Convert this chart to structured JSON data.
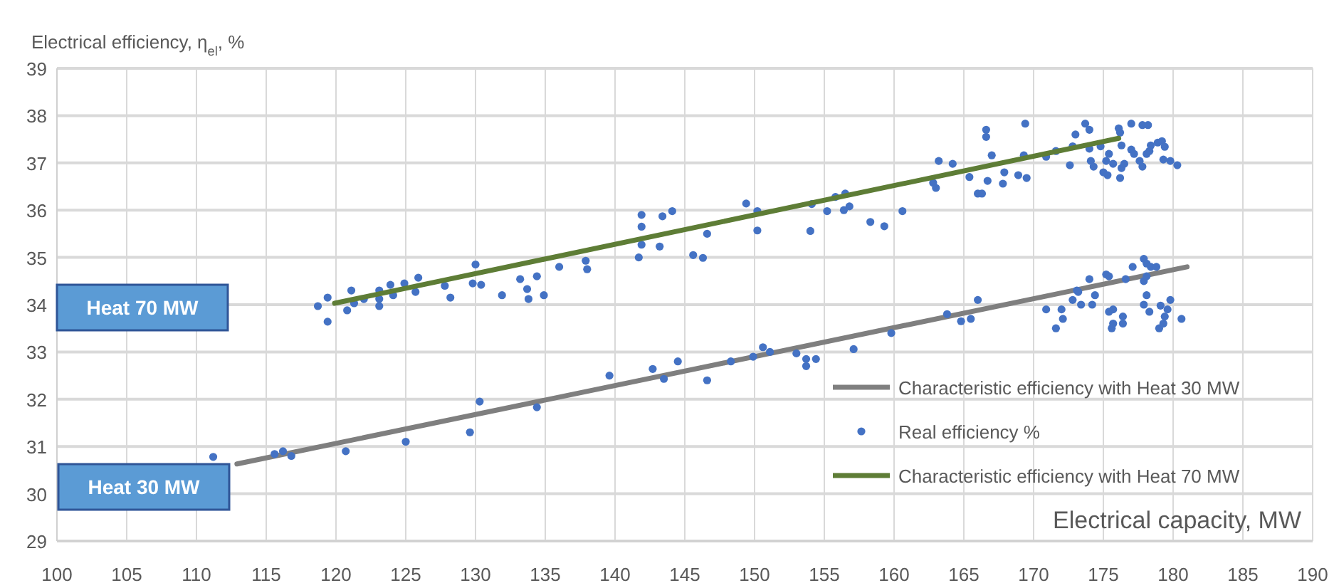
{
  "chart_data": {
    "type": "scatter",
    "xlabel": "Electrical capacity, MW",
    "ylabel": "Electrical efficiency, η$_{el}$, %",
    "xlim": [
      100,
      190
    ],
    "xticks": [
      100,
      105,
      110,
      115,
      120,
      125,
      130,
      135,
      140,
      145,
      150,
      155,
      160,
      165,
      170,
      175,
      180,
      185,
      190
    ],
    "ylim": [
      29,
      39
    ],
    "yticks": [
      29,
      30,
      31,
      32,
      33,
      34,
      35,
      36,
      37,
      38,
      39
    ],
    "grid": true,
    "legend": "bottom right",
    "annotations": [
      "Heat 70 MW",
      "Heat 30 MW"
    ],
    "series": [
      {
        "name": "Characteristic efficiency with Heat 30 MW",
        "type": "line",
        "color": "#7f7f7f",
        "x": [
          112.9,
          181
        ],
        "values": [
          30.63,
          34.8
        ]
      },
      {
        "name": "Real efficiency %",
        "marker": "circle",
        "color": "#4472c4",
        "x": [
          111.2,
          115.6,
          116.2,
          116.8,
          120.7,
          125,
          129.6,
          130.3,
          134.4,
          139.6,
          142.7,
          143.5,
          144.5,
          146.6,
          148.3,
          149.9,
          150.6,
          151.1,
          153,
          153.7,
          153.7,
          154.4,
          157.1,
          159.8,
          163.8,
          164.8,
          165.5,
          166,
          170.9,
          171.6,
          172,
          172.1,
          172.8,
          173.2,
          173.4,
          174.2,
          174.4,
          175.4,
          175.6,
          175.7,
          175.7,
          176.4,
          176.4,
          177.9,
          178.1,
          178.3,
          179.1,
          179,
          179.3,
          179.4,
          179.6,
          179.8,
          180.6,
          174,
          173.1,
          175.2,
          175.4,
          176.6,
          177.1,
          177.9,
          178.1,
          178.4,
          178.8,
          177.9,
          178.1,
          118.7,
          119.4,
          119.4,
          120.8,
          121.1,
          121.3,
          122,
          123.1,
          123.1,
          123.1,
          124.1,
          125.7,
          127.8,
          128.2,
          131.9,
          133.7,
          133.8,
          134.9,
          123.9,
          124.9,
          125.9,
          129.8,
          130,
          130.4,
          133.2,
          134.4,
          136,
          137.9,
          138,
          141.7,
          141.9,
          141.9,
          141.9,
          143.2,
          143.4,
          144.1,
          145.6,
          146.3,
          146.6,
          149.4,
          150.2,
          150.2,
          154,
          154.1,
          155.2,
          155.8,
          156.4,
          156.5,
          156.8,
          158.3,
          159.3,
          160.6,
          162.8,
          163,
          163.2,
          164.2,
          165.4,
          166,
          166.3,
          166.6,
          166.6,
          166.7,
          167,
          167.8,
          167.9,
          168.9,
          169.3,
          169.4,
          169.5,
          170.9,
          171.6,
          172.6,
          172.8,
          173,
          173.7,
          174,
          174,
          174.1,
          174.3,
          174.8,
          175,
          175.2,
          175.3,
          175.4,
          175.7,
          176.1,
          176.2,
          176.2,
          176.3,
          176.3,
          176.5,
          177,
          177,
          177.2,
          177.6,
          177.8,
          178.2,
          178.3,
          178.4,
          177.8,
          178.9,
          179.2,
          179.3,
          179.4,
          179.8,
          180.3,
          178.1
        ],
        "values": [
          30.78,
          30.84,
          30.9,
          30.8,
          30.9,
          31.1,
          31.3,
          31.95,
          31.83,
          32.5,
          32.64,
          32.43,
          32.8,
          32.4,
          32.8,
          32.9,
          33.1,
          33,
          32.97,
          32.85,
          32.7,
          32.85,
          33.06,
          33.4,
          33.8,
          33.65,
          33.7,
          34.1,
          33.9,
          33.5,
          33.9,
          33.7,
          34.1,
          34.27,
          34,
          34,
          34.2,
          33.85,
          33.5,
          33.6,
          33.9,
          33.75,
          33.6,
          34,
          34.2,
          33.85,
          33.98,
          33.5,
          33.6,
          33.75,
          33.9,
          34.1,
          33.7,
          34.54,
          34.3,
          34.64,
          34.6,
          34.54,
          34.8,
          34.97,
          34.87,
          34.8,
          34.8,
          34.5,
          34.6,
          33.97,
          34.15,
          33.64,
          33.88,
          34.3,
          34.03,
          34.12,
          34.3,
          34.12,
          33.97,
          34.2,
          34.27,
          34.4,
          34.15,
          34.2,
          34.33,
          34.12,
          34.2,
          34.42,
          34.45,
          34.57,
          34.45,
          34.85,
          34.42,
          34.54,
          34.6,
          34.8,
          34.93,
          34.75,
          35,
          35.27,
          35.65,
          35.9,
          35.23,
          35.87,
          35.98,
          35.05,
          34.99,
          35.5,
          36.14,
          35.98,
          35.57,
          35.56,
          36.13,
          35.98,
          36.28,
          36,
          36.35,
          36.08,
          35.75,
          35.66,
          35.98,
          36.58,
          36.47,
          37.04,
          36.98,
          36.7,
          36.35,
          36.35,
          37.7,
          37.55,
          36.62,
          37.16,
          36.56,
          36.8,
          36.74,
          37.16,
          37.83,
          36.68,
          37.13,
          37.25,
          36.95,
          37.35,
          37.6,
          37.83,
          37.7,
          37.3,
          37.04,
          36.92,
          37.35,
          36.8,
          37.04,
          36.74,
          37.19,
          36.98,
          37.73,
          37.64,
          36.68,
          36.89,
          37.37,
          36.98,
          37.83,
          37.28,
          37.19,
          37.04,
          37.8,
          37.8,
          37.25,
          37.37,
          36.92,
          37.43,
          37.46,
          37.07,
          37.34,
          37.04,
          36.95,
          37.19
        ]
      },
      {
        "name": "Characteristic efficiency with Heat 70 MW",
        "type": "line",
        "color": "#5e7d36",
        "x": [
          119.9,
          176.1
        ],
        "values": [
          34.03,
          37.52
        ]
      }
    ]
  }
}
